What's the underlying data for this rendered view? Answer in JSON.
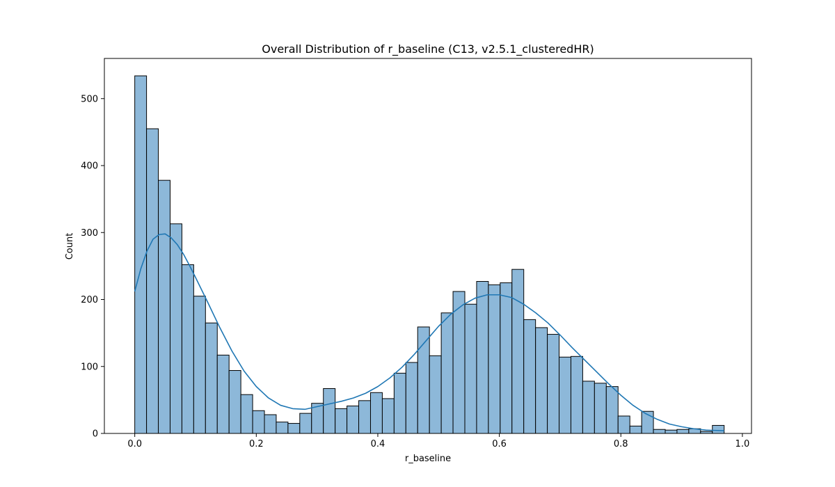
{
  "chart_data": {
    "type": "bar",
    "title": "Overall Distribution of r_baseline (C13, v2.5.1_clusteredHR)",
    "xlabel": "r_baseline",
    "ylabel": "Count",
    "xlim": [
      -0.05,
      1.015
    ],
    "ylim": [
      0,
      560
    ],
    "bin_width": 0.0194,
    "bin_starts": [
      0.0,
      0.0194,
      0.0388,
      0.0582,
      0.0776,
      0.097,
      0.1164,
      0.1358,
      0.1552,
      0.1746,
      0.194,
      0.2134,
      0.2328,
      0.2522,
      0.2716,
      0.291,
      0.3104,
      0.3298,
      0.3492,
      0.3686,
      0.388,
      0.4074,
      0.4268,
      0.4462,
      0.4656,
      0.485,
      0.5044,
      0.5238,
      0.5432,
      0.5626,
      0.582,
      0.6014,
      0.6208,
      0.6402,
      0.6596,
      0.679,
      0.6984,
      0.7178,
      0.7372,
      0.7566,
      0.776,
      0.7954,
      0.8148,
      0.8342,
      0.8536,
      0.873,
      0.8924,
      0.9118,
      0.9312,
      0.9506
    ],
    "values": [
      534,
      455,
      378,
      313,
      252,
      205,
      165,
      117,
      94,
      58,
      34,
      28,
      17,
      15,
      30,
      45,
      67,
      37,
      41,
      49,
      61,
      52,
      90,
      106,
      159,
      116,
      180,
      212,
      193,
      227,
      222,
      225,
      245,
      170,
      158,
      148,
      114,
      115,
      78,
      75,
      70,
      26,
      11,
      33,
      6,
      5,
      6,
      7,
      3,
      12
    ],
    "kde": {
      "x": [
        0.0,
        0.01,
        0.02,
        0.03,
        0.04,
        0.05,
        0.06,
        0.07,
        0.08,
        0.09,
        0.1,
        0.12,
        0.14,
        0.16,
        0.18,
        0.2,
        0.22,
        0.24,
        0.26,
        0.28,
        0.3,
        0.32,
        0.34,
        0.36,
        0.38,
        0.4,
        0.42,
        0.44,
        0.46,
        0.48,
        0.5,
        0.52,
        0.54,
        0.56,
        0.58,
        0.6,
        0.62,
        0.64,
        0.66,
        0.68,
        0.7,
        0.72,
        0.74,
        0.76,
        0.78,
        0.8,
        0.82,
        0.84,
        0.86,
        0.88,
        0.9,
        0.92,
        0.94,
        0.97
      ],
      "y": [
        212,
        246,
        272,
        290,
        297,
        298,
        292,
        282,
        268,
        251,
        233,
        196,
        158,
        123,
        93,
        70,
        53,
        42,
        37,
        36,
        40,
        44,
        48,
        53,
        60,
        70,
        83,
        99,
        118,
        139,
        160,
        178,
        192,
        202,
        207,
        207,
        203,
        193,
        180,
        165,
        147,
        128,
        110,
        92,
        74,
        57,
        42,
        30,
        21,
        14,
        10,
        7,
        5,
        4
      ]
    },
    "xticks": [
      0.0,
      0.2,
      0.4,
      0.6,
      0.8,
      1.0
    ],
    "xtick_labels": [
      "0.0",
      "0.2",
      "0.4",
      "0.6",
      "0.8",
      "1.0"
    ],
    "yticks": [
      0,
      100,
      200,
      300,
      400,
      500
    ],
    "ytick_labels": [
      "0",
      "100",
      "200",
      "300",
      "400",
      "500"
    ],
    "grid": false,
    "legend": "none",
    "bar_color": "#8db8d9",
    "bar_edge_color": "#000000",
    "kde_color": "#1f77b4"
  }
}
